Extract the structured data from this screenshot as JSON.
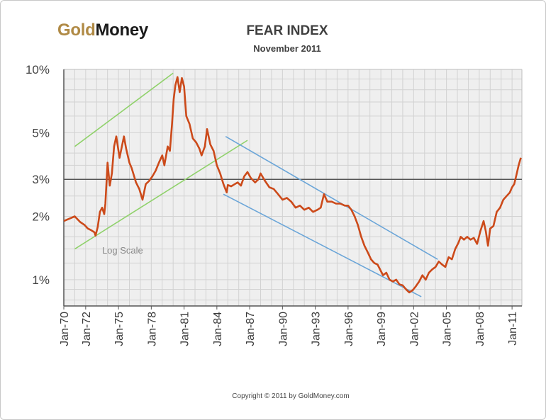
{
  "brand": {
    "gold": "Gold",
    "money": "Money"
  },
  "copyright": "Copyright © 2011 by GoldMoney.com",
  "chart_data": {
    "type": "line",
    "title": "FEAR INDEX",
    "subtitle": "November 2011",
    "yscale": "log",
    "ylim": [
      0.75,
      10
    ],
    "xlim": [
      1970.0,
      2011.9
    ],
    "yticks": [
      {
        "value": 10,
        "label": "10%"
      },
      {
        "value": 5,
        "label": "5%"
      },
      {
        "value": 3,
        "label": "3%"
      },
      {
        "value": 2,
        "label": "2%"
      },
      {
        "value": 1,
        "label": "1%"
      }
    ],
    "xticks": [
      {
        "value": 1970,
        "label": "Jan-70"
      },
      {
        "value": 1972,
        "label": "Jan-72"
      },
      {
        "value": 1975,
        "label": "Jan-75"
      },
      {
        "value": 1978,
        "label": "Jan-78"
      },
      {
        "value": 1981,
        "label": "Jan-81"
      },
      {
        "value": 1984,
        "label": "Jan-84"
      },
      {
        "value": 1987,
        "label": "Jan-87"
      },
      {
        "value": 1990,
        "label": "Jan-90"
      },
      {
        "value": 1993,
        "label": "Jan-93"
      },
      {
        "value": 1996,
        "label": "Jan-96"
      },
      {
        "value": 1999,
        "label": "Jan-99"
      },
      {
        "value": 2002,
        "label": "Jan-02"
      },
      {
        "value": 2005,
        "label": "Jan-05"
      },
      {
        "value": 2008,
        "label": "Jan-08"
      },
      {
        "value": 2011,
        "label": "Jan-11"
      }
    ],
    "reference_line": {
      "value": 3,
      "color": "#555555"
    },
    "annotation": {
      "text": "Log Scale",
      "x": 1973.5,
      "y": 1.33
    },
    "series": [
      {
        "name": "Fear Index",
        "color": "#cc4a1a",
        "x": [
          1970.0,
          1970.5,
          1971.0,
          1971.5,
          1971.9,
          1972.2,
          1972.5,
          1972.8,
          1972.9,
          1973.1,
          1973.3,
          1973.5,
          1973.7,
          1973.8,
          1974.0,
          1974.2,
          1974.4,
          1974.6,
          1974.8,
          1975.1,
          1975.5,
          1975.7,
          1976.0,
          1976.2,
          1976.6,
          1976.9,
          1977.2,
          1977.5,
          1977.8,
          1978.1,
          1978.4,
          1978.7,
          1979.0,
          1979.2,
          1979.5,
          1979.7,
          1979.9,
          1980.05,
          1980.2,
          1980.4,
          1980.6,
          1980.8,
          1981.0,
          1981.2,
          1981.5,
          1981.8,
          1982.1,
          1982.4,
          1982.6,
          1982.9,
          1983.1,
          1983.4,
          1983.7,
          1984.0,
          1984.3,
          1984.6,
          1984.9,
          1985.0,
          1985.3,
          1985.6,
          1985.9,
          1986.2,
          1986.5,
          1986.8,
          1987.1,
          1987.5,
          1987.8,
          1988.0,
          1988.4,
          1988.8,
          1989.2,
          1989.6,
          1990.0,
          1990.4,
          1990.8,
          1991.2,
          1991.6,
          1992.0,
          1992.4,
          1992.8,
          1993.2,
          1993.5,
          1993.8,
          1994.1,
          1994.5,
          1994.9,
          1995.3,
          1995.7,
          1996.0,
          1996.3,
          1996.6,
          1996.9,
          1997.2,
          1997.5,
          1997.8,
          1998.1,
          1998.4,
          1998.7,
          1999.0,
          1999.2,
          1999.5,
          1999.8,
          2000.1,
          2000.4,
          2000.7,
          2001.0,
          2001.3,
          2001.6,
          2001.9,
          2002.2,
          2002.5,
          2002.8,
          2003.1,
          2003.4,
          2003.7,
          2004.0,
          2004.3,
          2004.6,
          2004.9,
          2005.2,
          2005.5,
          2005.8,
          2006.1,
          2006.3,
          2006.6,
          2006.9,
          2007.2,
          2007.5,
          2007.8,
          2008.1,
          2008.4,
          2008.6,
          2008.8,
          2009.0,
          2009.3,
          2009.6,
          2009.9,
          2010.2,
          2010.5,
          2010.8,
          2011.0,
          2011.2,
          2011.4,
          2011.6,
          2011.8
        ],
        "values": [
          1.9,
          1.95,
          2.0,
          1.88,
          1.82,
          1.75,
          1.72,
          1.68,
          1.62,
          1.78,
          2.1,
          2.2,
          2.05,
          2.3,
          3.6,
          2.8,
          3.2,
          4.3,
          4.8,
          3.8,
          4.8,
          4.2,
          3.6,
          3.4,
          2.9,
          2.7,
          2.4,
          2.85,
          2.95,
          3.1,
          3.3,
          3.6,
          3.9,
          3.5,
          4.3,
          4.1,
          5.5,
          7.2,
          8.4,
          9.2,
          7.8,
          9.1,
          8.3,
          6.0,
          5.5,
          4.7,
          4.5,
          4.2,
          3.9,
          4.3,
          5.2,
          4.4,
          4.1,
          3.5,
          3.2,
          2.85,
          2.6,
          2.82,
          2.78,
          2.84,
          2.9,
          2.8,
          3.1,
          3.25,
          3.05,
          2.9,
          3.0,
          3.2,
          2.95,
          2.75,
          2.7,
          2.55,
          2.4,
          2.45,
          2.35,
          2.2,
          2.25,
          2.15,
          2.2,
          2.1,
          2.15,
          2.2,
          2.55,
          2.35,
          2.35,
          2.3,
          2.3,
          2.25,
          2.25,
          2.15,
          2.0,
          1.82,
          1.6,
          1.45,
          1.35,
          1.25,
          1.2,
          1.18,
          1.1,
          1.05,
          1.08,
          1.0,
          0.98,
          1.0,
          0.95,
          0.94,
          0.9,
          0.87,
          0.89,
          0.93,
          0.98,
          1.05,
          1.0,
          1.08,
          1.12,
          1.15,
          1.22,
          1.18,
          1.15,
          1.28,
          1.25,
          1.4,
          1.5,
          1.6,
          1.55,
          1.6,
          1.55,
          1.58,
          1.48,
          1.7,
          1.9,
          1.7,
          1.45,
          1.75,
          1.8,
          2.1,
          2.2,
          2.4,
          2.5,
          2.6,
          2.75,
          2.85,
          3.15,
          3.5,
          3.8
        ]
      }
    ],
    "trendlines": [
      {
        "name": "green-upper",
        "color": "#8fd16a",
        "x": [
          1971.0,
          1980.0
        ],
        "y": [
          4.3,
          9.6
        ]
      },
      {
        "name": "green-lower",
        "color": "#8fd16a",
        "x": [
          1971.0,
          1986.8
        ],
        "y": [
          1.4,
          4.6
        ]
      },
      {
        "name": "blue-upper",
        "color": "#6aa5d8",
        "x": [
          1984.8,
          2004.2
        ],
        "y": [
          4.8,
          1.25
        ]
      },
      {
        "name": "blue-lower",
        "color": "#6aa5d8",
        "x": [
          1984.6,
          2002.7
        ],
        "y": [
          2.55,
          0.83
        ]
      }
    ]
  }
}
